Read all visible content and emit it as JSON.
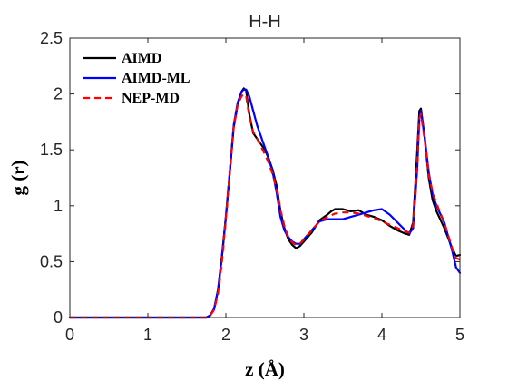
{
  "chart_data": {
    "type": "line",
    "title": "H-H",
    "xlabel": "z (Å)",
    "ylabel": "g (r)",
    "xlim": [
      0,
      5
    ],
    "ylim": [
      0,
      2.5
    ],
    "xticks": [
      0,
      1,
      2,
      3,
      4,
      5
    ],
    "xtick_labels": [
      "0",
      "1",
      "2",
      "3",
      "4",
      "5"
    ],
    "yticks": [
      0,
      0.5,
      1,
      1.5,
      2,
      2.5
    ],
    "ytick_labels": [
      "0",
      "0.5",
      "1",
      "1.5",
      "2",
      "2.5"
    ],
    "grid": false,
    "legend": "top-left",
    "series": [
      {
        "name": "AIMD",
        "color": "#000000",
        "dash": "solid",
        "x": [
          0,
          1.6,
          1.75,
          1.8,
          1.85,
          1.9,
          1.95,
          2.0,
          2.05,
          2.1,
          2.15,
          2.2,
          2.23,
          2.26,
          2.3,
          2.35,
          2.4,
          2.45,
          2.5,
          2.55,
          2.6,
          2.65,
          2.7,
          2.75,
          2.8,
          2.85,
          2.9,
          2.95,
          3.0,
          3.1,
          3.2,
          3.3,
          3.35,
          3.4,
          3.5,
          3.6,
          3.7,
          3.8,
          3.9,
          4.0,
          4.1,
          4.2,
          4.3,
          4.35,
          4.4,
          4.45,
          4.48,
          4.5,
          4.55,
          4.6,
          4.65,
          4.7,
          4.8,
          4.9,
          4.95,
          5.0
        ],
        "y": [
          0,
          0,
          0.0,
          0.02,
          0.08,
          0.25,
          0.55,
          0.9,
          1.3,
          1.7,
          1.9,
          2.02,
          2.05,
          2.03,
          1.82,
          1.65,
          1.6,
          1.55,
          1.5,
          1.42,
          1.32,
          1.18,
          0.95,
          0.8,
          0.7,
          0.65,
          0.62,
          0.64,
          0.68,
          0.76,
          0.87,
          0.92,
          0.95,
          0.97,
          0.97,
          0.95,
          0.96,
          0.92,
          0.9,
          0.87,
          0.82,
          0.78,
          0.75,
          0.74,
          0.85,
          1.45,
          1.85,
          1.87,
          1.6,
          1.25,
          1.05,
          0.95,
          0.8,
          0.62,
          0.55,
          0.56
        ]
      },
      {
        "name": "AIMD-ML",
        "color": "#0000ff",
        "dash": "solid",
        "x": [
          0,
          1.6,
          1.75,
          1.8,
          1.85,
          1.9,
          1.95,
          2.0,
          2.05,
          2.1,
          2.15,
          2.2,
          2.23,
          2.26,
          2.3,
          2.35,
          2.4,
          2.45,
          2.5,
          2.55,
          2.6,
          2.65,
          2.7,
          2.75,
          2.8,
          2.85,
          2.9,
          2.95,
          3.0,
          3.1,
          3.2,
          3.3,
          3.4,
          3.5,
          3.6,
          3.7,
          3.8,
          3.9,
          4.0,
          4.1,
          4.2,
          4.3,
          4.35,
          4.4,
          4.45,
          4.48,
          4.5,
          4.55,
          4.6,
          4.65,
          4.7,
          4.8,
          4.9,
          4.95,
          5.0
        ],
        "y": [
          0,
          0,
          0.0,
          0.02,
          0.08,
          0.25,
          0.55,
          0.9,
          1.3,
          1.72,
          1.92,
          2.02,
          2.04,
          2.04,
          1.98,
          1.85,
          1.72,
          1.62,
          1.52,
          1.42,
          1.3,
          1.12,
          0.9,
          0.78,
          0.72,
          0.68,
          0.66,
          0.66,
          0.7,
          0.78,
          0.86,
          0.88,
          0.88,
          0.88,
          0.9,
          0.92,
          0.94,
          0.96,
          0.97,
          0.92,
          0.85,
          0.78,
          0.75,
          0.8,
          1.3,
          1.78,
          1.85,
          1.6,
          1.3,
          1.1,
          1.0,
          0.85,
          0.6,
          0.45,
          0.4
        ]
      },
      {
        "name": "NEP-MD",
        "color": "#ff0000",
        "dash": "dashed",
        "x": [
          0,
          1.6,
          1.75,
          1.8,
          1.85,
          1.9,
          1.95,
          2.0,
          2.05,
          2.1,
          2.15,
          2.2,
          2.23,
          2.26,
          2.3,
          2.35,
          2.4,
          2.45,
          2.5,
          2.55,
          2.6,
          2.65,
          2.7,
          2.75,
          2.8,
          2.85,
          2.9,
          2.95,
          3.0,
          3.1,
          3.2,
          3.3,
          3.4,
          3.5,
          3.6,
          3.7,
          3.8,
          3.9,
          4.0,
          4.1,
          4.2,
          4.3,
          4.35,
          4.4,
          4.45,
          4.48,
          4.5,
          4.55,
          4.6,
          4.65,
          4.7,
          4.8,
          4.9,
          4.95,
          5.0
        ],
        "y": [
          0,
          0,
          0.0,
          0.02,
          0.07,
          0.22,
          0.5,
          0.88,
          1.3,
          1.7,
          1.9,
          1.98,
          2.0,
          1.98,
          1.8,
          1.66,
          1.6,
          1.53,
          1.46,
          1.38,
          1.28,
          1.15,
          0.96,
          0.82,
          0.72,
          0.67,
          0.65,
          0.66,
          0.7,
          0.78,
          0.86,
          0.9,
          0.93,
          0.94,
          0.94,
          0.93,
          0.91,
          0.89,
          0.86,
          0.83,
          0.8,
          0.77,
          0.76,
          0.82,
          1.35,
          1.78,
          1.82,
          1.58,
          1.28,
          1.12,
          1.02,
          0.85,
          0.62,
          0.53,
          0.52
        ]
      }
    ]
  }
}
